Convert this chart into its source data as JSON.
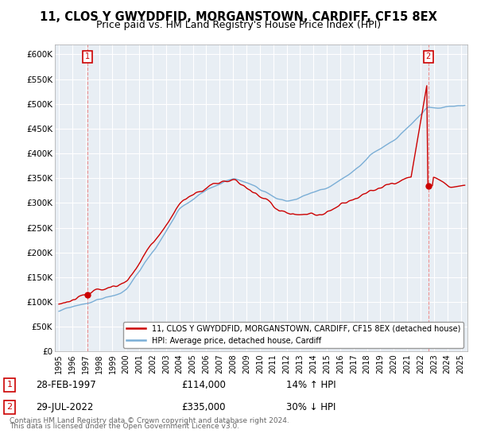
{
  "title": "11, CLOS Y GWYDDFID, MORGANSTOWN, CARDIFF, CF15 8EX",
  "subtitle": "Price paid vs. HM Land Registry's House Price Index (HPI)",
  "title_fontsize": 10.5,
  "subtitle_fontsize": 9,
  "ylim": [
    0,
    620000
  ],
  "yticks": [
    0,
    50000,
    100000,
    150000,
    200000,
    250000,
    300000,
    350000,
    400000,
    450000,
    500000,
    550000,
    600000
  ],
  "ytick_labels": [
    "£0",
    "£50K",
    "£100K",
    "£150K",
    "£200K",
    "£250K",
    "£300K",
    "£350K",
    "£400K",
    "£450K",
    "£500K",
    "£550K",
    "£600K"
  ],
  "xlim_start": 1994.7,
  "xlim_end": 2025.5,
  "sale1_year": 1997.16,
  "sale1_price": 114000,
  "sale1_label": "1",
  "sale1_date": "28-FEB-1997",
  "sale1_pct": "14% ↑ HPI",
  "sale2_year": 2022.58,
  "sale2_price": 335000,
  "sale2_label": "2",
  "sale2_date": "29-JUL-2022",
  "sale2_pct": "30% ↓ HPI",
  "line_color_sales": "#cc0000",
  "line_color_hpi": "#7aaed6",
  "legend_label1": "11, CLOS Y GWYDDFID, MORGANSTOWN, CARDIFF, CF15 8EX (detached house)",
  "legend_label2": "HPI: Average price, detached house, Cardiff",
  "footer1": "Contains HM Land Registry data © Crown copyright and database right 2024.",
  "footer2": "This data is licensed under the Open Government Licence v3.0.",
  "background_color": "#ffffff",
  "plot_bg_color": "#e8eef4",
  "grid_color": "#ffffff",
  "annotation_box_color": "#cc0000",
  "dashed_line_color": "#ee8888"
}
